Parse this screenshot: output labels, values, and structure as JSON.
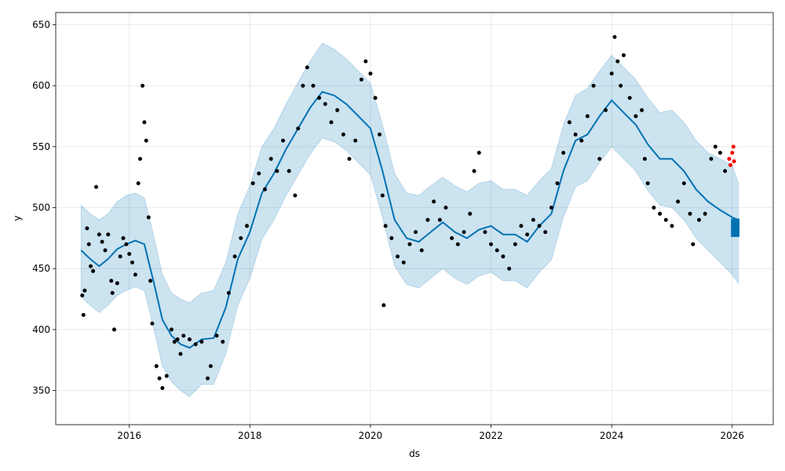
{
  "chart_data": {
    "type": "line",
    "title": "",
    "xlabel": "ds",
    "ylabel": "y",
    "xlim": [
      2014.78,
      2026.68
    ],
    "ylim": [
      322,
      660
    ],
    "grid": true,
    "x_ticks": [
      2016,
      2018,
      2020,
      2022,
      2024,
      2026
    ],
    "x_tick_labels": [
      "2016",
      "2018",
      "2020",
      "2022",
      "2024",
      "2026"
    ],
    "y_ticks": [
      350,
      400,
      450,
      500,
      550,
      600,
      650
    ],
    "y_tick_labels": [
      "350",
      "400",
      "450",
      "500",
      "550",
      "600",
      "650"
    ],
    "colors": {
      "forecast_line": "#0072B2",
      "uncertainty_band": "#0072B2",
      "actual_points": "#000000",
      "recent_points": "#ff0000",
      "future_block": "#0072B2"
    },
    "forecast": {
      "x": [
        2015.2,
        2015.35,
        2015.5,
        2015.65,
        2015.8,
        2015.95,
        2016.1,
        2016.25,
        2016.4,
        2016.55,
        2016.7,
        2016.85,
        2017.0,
        2017.2,
        2017.4,
        2017.6,
        2017.8,
        2018.0,
        2018.2,
        2018.4,
        2018.6,
        2018.8,
        2019.0,
        2019.2,
        2019.4,
        2019.6,
        2019.8,
        2020.0,
        2020.2,
        2020.4,
        2020.6,
        2020.8,
        2021.0,
        2021.2,
        2021.4,
        2021.6,
        2021.8,
        2022.0,
        2022.2,
        2022.4,
        2022.6,
        2022.8,
        2023.0,
        2023.2,
        2023.4,
        2023.6,
        2023.8,
        2024.0,
        2024.2,
        2024.4,
        2024.6,
        2024.8,
        2025.0,
        2025.2,
        2025.4,
        2025.6,
        2025.8,
        2026.0,
        2026.1
      ],
      "yhat": [
        465,
        458,
        452,
        458,
        466,
        470,
        473,
        470,
        440,
        408,
        395,
        388,
        385,
        392,
        393,
        418,
        458,
        480,
        512,
        528,
        548,
        565,
        582,
        595,
        592,
        585,
        575,
        565,
        530,
        490,
        475,
        472,
        480,
        488,
        480,
        475,
        482,
        485,
        478,
        478,
        472,
        485,
        495,
        530,
        555,
        560,
        575,
        588,
        578,
        568,
        552,
        540,
        540,
        530,
        515,
        505,
        498,
        492,
        490
      ],
      "upper": [
        502,
        495,
        490,
        495,
        505,
        510,
        512,
        508,
        478,
        445,
        430,
        425,
        422,
        430,
        432,
        455,
        495,
        518,
        550,
        565,
        585,
        603,
        620,
        635,
        630,
        622,
        612,
        602,
        568,
        528,
        512,
        510,
        518,
        525,
        518,
        513,
        520,
        522,
        515,
        515,
        510,
        522,
        532,
        568,
        592,
        598,
        612,
        625,
        615,
        605,
        590,
        578,
        580,
        570,
        555,
        545,
        540,
        535,
        520
      ],
      "lower": [
        427,
        420,
        414,
        420,
        428,
        432,
        435,
        432,
        402,
        370,
        357,
        350,
        345,
        355,
        355,
        380,
        420,
        442,
        474,
        490,
        510,
        527,
        544,
        557,
        554,
        547,
        537,
        527,
        492,
        452,
        437,
        434,
        442,
        450,
        442,
        437,
        444,
        447,
        440,
        440,
        434,
        447,
        457,
        492,
        517,
        522,
        537,
        550,
        540,
        530,
        514,
        502,
        500,
        490,
        475,
        465,
        455,
        445,
        438
      ]
    },
    "future_block": {
      "x_start": 2025.98,
      "x_end": 2026.12,
      "y_low": 476,
      "y_high": 491
    },
    "actual_points": [
      [
        2015.22,
        428
      ],
      [
        2015.24,
        412
      ],
      [
        2015.26,
        432
      ],
      [
        2015.3,
        483
      ],
      [
        2015.33,
        470
      ],
      [
        2015.36,
        452
      ],
      [
        2015.4,
        448
      ],
      [
        2015.45,
        517
      ],
      [
        2015.5,
        478
      ],
      [
        2015.55,
        472
      ],
      [
        2015.6,
        465
      ],
      [
        2015.65,
        478
      ],
      [
        2015.7,
        440
      ],
      [
        2015.72,
        430
      ],
      [
        2015.75,
        400
      ],
      [
        2015.8,
        438
      ],
      [
        2015.85,
        460
      ],
      [
        2015.9,
        475
      ],
      [
        2015.95,
        470
      ],
      [
        2016.0,
        462
      ],
      [
        2016.05,
        455
      ],
      [
        2016.1,
        445
      ],
      [
        2016.15,
        520
      ],
      [
        2016.18,
        540
      ],
      [
        2016.22,
        600
      ],
      [
        2016.25,
        570
      ],
      [
        2016.28,
        555
      ],
      [
        2016.32,
        492
      ],
      [
        2016.35,
        440
      ],
      [
        2016.38,
        405
      ],
      [
        2016.45,
        370
      ],
      [
        2016.5,
        360
      ],
      [
        2016.55,
        352
      ],
      [
        2016.62,
        362
      ],
      [
        2016.7,
        400
      ],
      [
        2016.75,
        390
      ],
      [
        2016.8,
        392
      ],
      [
        2016.85,
        380
      ],
      [
        2016.9,
        395
      ],
      [
        2017.0,
        392
      ],
      [
        2017.1,
        388
      ],
      [
        2017.2,
        390
      ],
      [
        2017.3,
        360
      ],
      [
        2017.35,
        370
      ],
      [
        2017.45,
        395
      ],
      [
        2017.55,
        390
      ],
      [
        2017.65,
        430
      ],
      [
        2017.75,
        460
      ],
      [
        2017.85,
        475
      ],
      [
        2017.95,
        485
      ],
      [
        2018.05,
        520
      ],
      [
        2018.15,
        528
      ],
      [
        2018.25,
        515
      ],
      [
        2018.35,
        540
      ],
      [
        2018.45,
        530
      ],
      [
        2018.55,
        555
      ],
      [
        2018.65,
        530
      ],
      [
        2018.75,
        510
      ],
      [
        2018.8,
        565
      ],
      [
        2018.88,
        600
      ],
      [
        2018.95,
        615
      ],
      [
        2019.05,
        600
      ],
      [
        2019.15,
        590
      ],
      [
        2019.25,
        585
      ],
      [
        2019.35,
        570
      ],
      [
        2019.45,
        580
      ],
      [
        2019.55,
        560
      ],
      [
        2019.65,
        540
      ],
      [
        2019.75,
        555
      ],
      [
        2019.85,
        605
      ],
      [
        2019.92,
        620
      ],
      [
        2020.0,
        610
      ],
      [
        2020.08,
        590
      ],
      [
        2020.15,
        560
      ],
      [
        2020.2,
        510
      ],
      [
        2020.22,
        420
      ],
      [
        2020.25,
        485
      ],
      [
        2020.35,
        475
      ],
      [
        2020.45,
        460
      ],
      [
        2020.55,
        455
      ],
      [
        2020.65,
        470
      ],
      [
        2020.75,
        480
      ],
      [
        2020.85,
        465
      ],
      [
        2020.95,
        490
      ],
      [
        2021.05,
        505
      ],
      [
        2021.15,
        490
      ],
      [
        2021.25,
        500
      ],
      [
        2021.35,
        475
      ],
      [
        2021.45,
        470
      ],
      [
        2021.55,
        480
      ],
      [
        2021.65,
        495
      ],
      [
        2021.72,
        530
      ],
      [
        2021.8,
        545
      ],
      [
        2021.9,
        480
      ],
      [
        2022.0,
        470
      ],
      [
        2022.1,
        465
      ],
      [
        2022.2,
        460
      ],
      [
        2022.3,
        450
      ],
      [
        2022.4,
        470
      ],
      [
        2022.5,
        485
      ],
      [
        2022.6,
        478
      ],
      [
        2022.7,
        490
      ],
      [
        2022.8,
        485
      ],
      [
        2022.9,
        480
      ],
      [
        2023.0,
        500
      ],
      [
        2023.1,
        520
      ],
      [
        2023.2,
        545
      ],
      [
        2023.3,
        570
      ],
      [
        2023.4,
        560
      ],
      [
        2023.5,
        555
      ],
      [
        2023.6,
        575
      ],
      [
        2023.7,
        600
      ],
      [
        2023.8,
        540
      ],
      [
        2023.9,
        580
      ],
      [
        2024.0,
        610
      ],
      [
        2024.05,
        640
      ],
      [
        2024.1,
        620
      ],
      [
        2024.15,
        600
      ],
      [
        2024.2,
        625
      ],
      [
        2024.3,
        590
      ],
      [
        2024.4,
        575
      ],
      [
        2024.5,
        580
      ],
      [
        2024.55,
        540
      ],
      [
        2024.6,
        520
      ],
      [
        2024.7,
        500
      ],
      [
        2024.8,
        495
      ],
      [
        2024.9,
        490
      ],
      [
        2025.0,
        485
      ],
      [
        2025.1,
        505
      ],
      [
        2025.2,
        520
      ],
      [
        2025.3,
        495
      ],
      [
        2025.35,
        470
      ],
      [
        2025.45,
        490
      ],
      [
        2025.55,
        495
      ],
      [
        2025.65,
        540
      ],
      [
        2025.72,
        550
      ],
      [
        2025.8,
        545
      ],
      [
        2025.88,
        530
      ]
    ],
    "recent_points": [
      [
        2025.95,
        540
      ],
      [
        2025.97,
        535
      ],
      [
        2026.0,
        545
      ],
      [
        2026.02,
        550
      ],
      [
        2026.03,
        538
      ]
    ]
  }
}
